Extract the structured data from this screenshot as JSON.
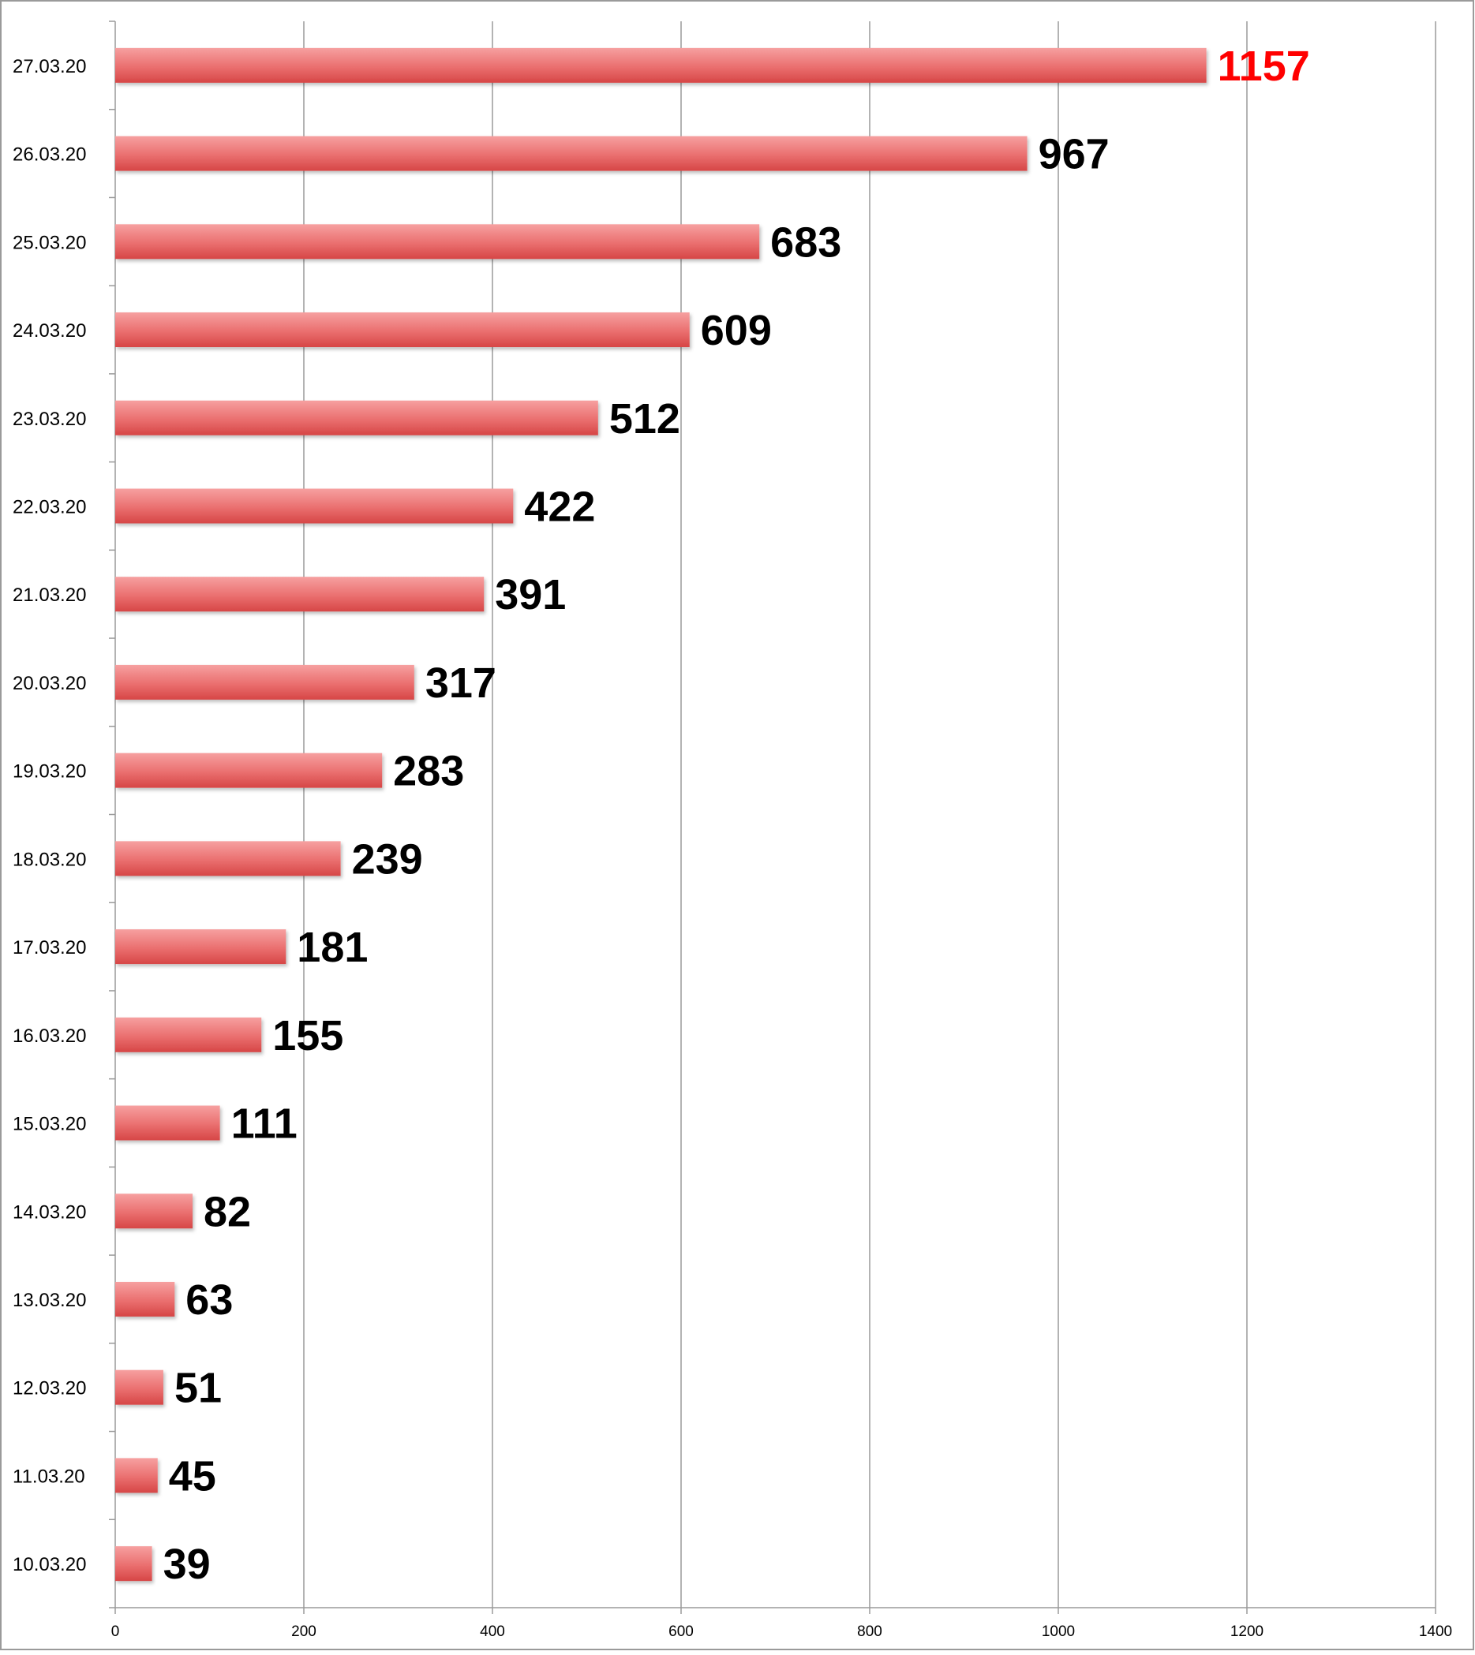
{
  "chart_data": {
    "type": "bar",
    "orientation": "horizontal",
    "categories": [
      "27.03.20",
      "26.03.20",
      "25.03.20",
      "24.03.20",
      "23.03.20",
      "22.03.20",
      "21.03.20",
      "20.03.20",
      "19.03.20",
      "18.03.20",
      "17.03.20",
      "16.03.20",
      "15.03.20",
      "14.03.20",
      "13.03.20",
      "12.03.20",
      "11.03.20",
      "10.03.20"
    ],
    "values": [
      1157,
      967,
      683,
      609,
      512,
      422,
      391,
      317,
      283,
      239,
      181,
      155,
      111,
      82,
      63,
      51,
      45,
      39
    ],
    "data_labels": [
      "1157",
      "967",
      "683",
      "609",
      "512",
      "422",
      "391",
      "317",
      "283",
      "239",
      "181",
      "155",
      "111",
      "82",
      "63",
      "51",
      "45",
      "39"
    ],
    "title": "",
    "xlabel": "",
    "ylabel": "",
    "xlim": [
      0,
      1400
    ],
    "x_ticks": [
      "0",
      "200",
      "400",
      "600",
      "800",
      "1000",
      "1200",
      "1400"
    ],
    "grid": "vertical",
    "legend": "none",
    "highlight_index": 0,
    "colors": {
      "bar_light": "#f6a0a0",
      "bar_mid": "#ea6f6f",
      "bar_dark": "#d64646",
      "label_default": "#000000",
      "label_highlight": "#ff0000",
      "grid": "#9a9a9a",
      "axis": "#9a9a9a"
    }
  }
}
